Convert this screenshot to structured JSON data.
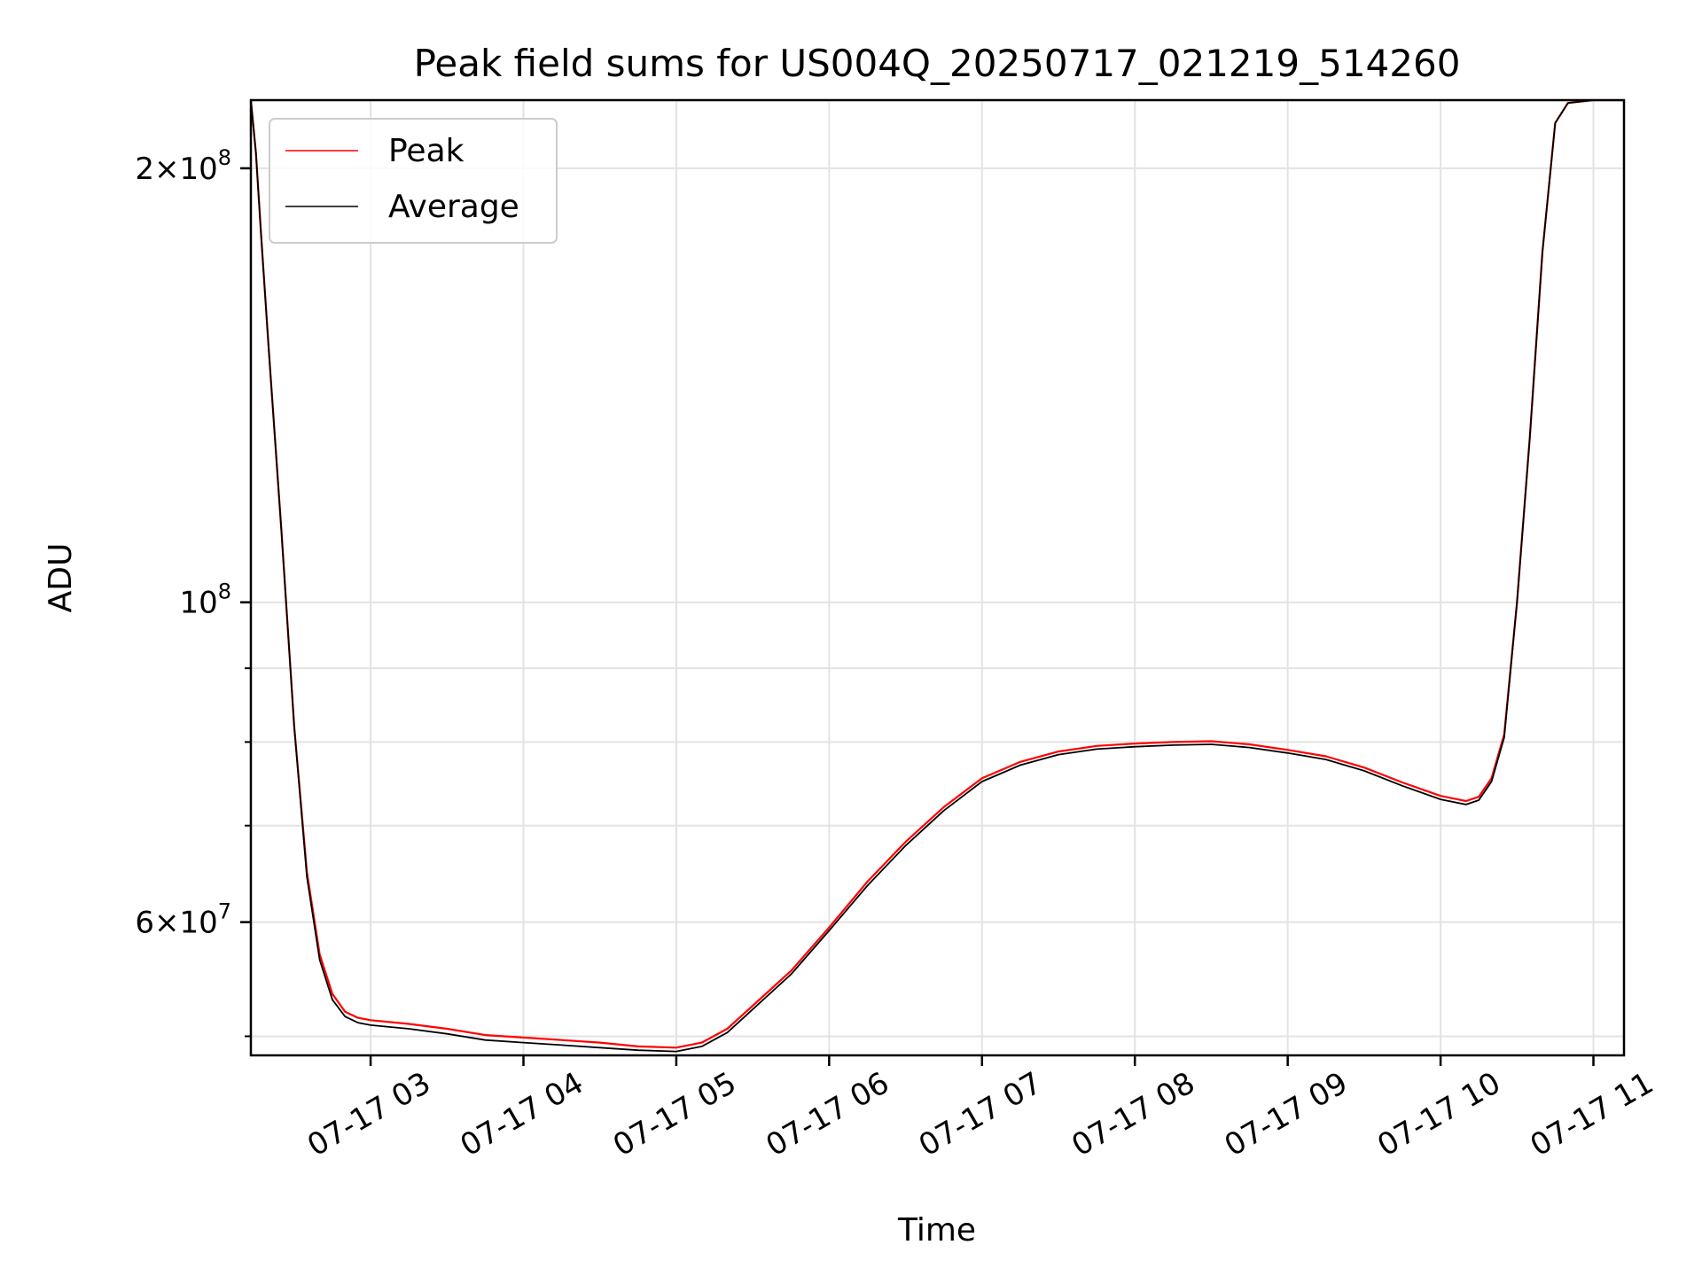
{
  "chart_data": {
    "type": "line",
    "title": "Peak field sums for US004Q_20250717_021219_514260",
    "xlabel": "Time",
    "ylabel": "ADU",
    "yscale": "log",
    "ylim": [
      48500000,
      223000000
    ],
    "xlim": [
      "07-17 02:13",
      "07-17 11:12"
    ],
    "grid": true,
    "legend_position": "top-left",
    "x_ticks": [
      "07-17 03",
      "07-17 04",
      "07-17 05",
      "07-17 06",
      "07-17 07",
      "07-17 08",
      "07-17 09",
      "07-17 10",
      "07-17 11"
    ],
    "y_ticks": [
      {
        "value": 60000000,
        "mant": "6",
        "exp": "7"
      },
      {
        "value": 100000000,
        "mant": "",
        "exp": "8"
      },
      {
        "value": 200000000,
        "mant": "2",
        "exp": "8"
      }
    ],
    "y_minor_ticks": [
      50000000,
      70000000,
      80000000,
      90000000
    ],
    "x": [
      "07-17 02:13",
      "07-17 02:15",
      "07-17 02:17",
      "07-17 02:20",
      "07-17 02:25",
      "07-17 02:30",
      "07-17 02:35",
      "07-17 02:40",
      "07-17 02:45",
      "07-17 02:50",
      "07-17 02:55",
      "07-17 03:00",
      "07-17 03:15",
      "07-17 03:30",
      "07-17 03:45",
      "07-17 04:00",
      "07-17 04:15",
      "07-17 04:30",
      "07-17 04:45",
      "07-17 05:00",
      "07-17 05:10",
      "07-17 05:20",
      "07-17 05:30",
      "07-17 05:45",
      "07-17 06:00",
      "07-17 06:15",
      "07-17 06:30",
      "07-17 06:45",
      "07-17 07:00",
      "07-17 07:15",
      "07-17 07:30",
      "07-17 07:45",
      "07-17 08:00",
      "07-17 08:15",
      "07-17 08:30",
      "07-17 08:45",
      "07-17 09:00",
      "07-17 09:15",
      "07-17 09:30",
      "07-17 09:45",
      "07-17 10:00",
      "07-17 10:10",
      "07-17 10:15",
      "07-17 10:20",
      "07-17 10:25",
      "07-17 10:30",
      "07-17 10:35",
      "07-17 10:40",
      "07-17 10:45",
      "07-17 10:50",
      "07-17 11:00",
      "07-17 11:12"
    ],
    "series": [
      {
        "name": "Peak",
        "color": "#ff0000",
        "values": [
          223000000,
          205000000,
          180000000,
          150000000,
          112000000,
          82000000,
          65000000,
          57000000,
          53500000,
          52000000,
          51500000,
          51300000,
          51000000,
          50600000,
          50100000,
          49900000,
          49700000,
          49500000,
          49200000,
          49100000,
          49500000,
          50600000,
          52500000,
          55500000,
          59500000,
          64000000,
          68200000,
          72100000,
          75500000,
          77500000,
          78800000,
          79500000,
          79800000,
          80000000,
          80100000,
          79700000,
          79000000,
          78200000,
          76800000,
          75000000,
          73400000,
          72800000,
          73300000,
          75500000,
          81000000,
          100000000,
          130000000,
          175000000,
          215000000,
          222000000,
          223000000,
          223000000
        ]
      },
      {
        "name": "Average",
        "color": "#000000",
        "values": [
          223000000,
          205000000,
          180000000,
          150000000,
          112000000,
          82000000,
          64500000,
          56500000,
          53000000,
          51600000,
          51100000,
          50900000,
          50600000,
          50200000,
          49700000,
          49500000,
          49300000,
          49100000,
          48900000,
          48800000,
          49200000,
          50300000,
          52200000,
          55200000,
          59200000,
          63600000,
          67800000,
          71700000,
          75100000,
          77100000,
          78400000,
          79100000,
          79400000,
          79600000,
          79700000,
          79300000,
          78600000,
          77800000,
          76400000,
          74600000,
          73000000,
          72400000,
          72900000,
          75100000,
          80600000,
          100000000,
          130000000,
          175000000,
          215000000,
          222000000,
          223000000,
          223000000
        ]
      }
    ]
  }
}
